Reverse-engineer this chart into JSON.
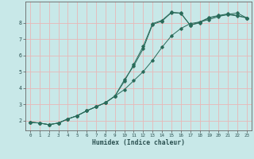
{
  "xlabel": "Humidex (Indice chaleur)",
  "bg_color": "#c8e8e8",
  "grid_color": "#e8b8b8",
  "line_color": "#2a6b5a",
  "xlim": [
    -0.5,
    23.5
  ],
  "ylim": [
    1.4,
    9.3
  ],
  "xticks": [
    0,
    1,
    2,
    3,
    4,
    5,
    6,
    7,
    8,
    9,
    10,
    11,
    12,
    13,
    14,
    15,
    16,
    17,
    18,
    19,
    20,
    21,
    22,
    23
  ],
  "yticks": [
    2,
    3,
    4,
    5,
    6,
    7,
    8
  ],
  "curve1_x": [
    0,
    1,
    2,
    3,
    4,
    5,
    6,
    7,
    8,
    9,
    10,
    11,
    12,
    13,
    14,
    15,
    16,
    17,
    18,
    19,
    20,
    21,
    22,
    23
  ],
  "curve1_y": [
    1.9,
    1.85,
    1.75,
    1.85,
    2.1,
    2.3,
    2.6,
    2.85,
    3.1,
    3.5,
    4.5,
    5.35,
    6.4,
    7.9,
    8.1,
    8.62,
    8.58,
    7.85,
    8.0,
    8.3,
    8.42,
    8.5,
    8.42,
    8.3
  ],
  "curve2_x": [
    0,
    1,
    2,
    3,
    4,
    5,
    6,
    7,
    8,
    9,
    10,
    11,
    12,
    13,
    14,
    15,
    16,
    17,
    18,
    19,
    20,
    21,
    22,
    23
  ],
  "curve2_y": [
    1.9,
    1.85,
    1.75,
    1.85,
    2.1,
    2.3,
    2.6,
    2.85,
    3.1,
    3.5,
    4.4,
    5.45,
    6.55,
    7.95,
    8.15,
    8.65,
    8.6,
    7.85,
    8.05,
    8.32,
    8.45,
    8.55,
    8.45,
    8.3
  ],
  "curve3_x": [
    0,
    1,
    2,
    3,
    4,
    5,
    6,
    7,
    8,
    9,
    10,
    11,
    12,
    13,
    14,
    15,
    16,
    17,
    18,
    19,
    20,
    21,
    22,
    23
  ],
  "curve3_y": [
    1.9,
    1.85,
    1.75,
    1.85,
    2.1,
    2.3,
    2.6,
    2.85,
    3.1,
    3.5,
    3.9,
    4.45,
    5.0,
    5.7,
    6.5,
    7.2,
    7.65,
    7.95,
    8.05,
    8.2,
    8.38,
    8.52,
    8.6,
    8.3
  ]
}
